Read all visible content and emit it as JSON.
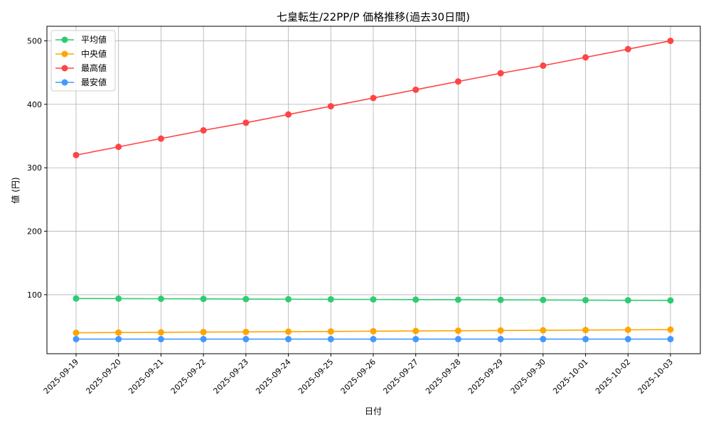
{
  "chart_data": {
    "type": "line",
    "title": "七皇転生/22PP/P 価格推移(過去30日間)",
    "xlabel": "日付",
    "ylabel": "値 (円)",
    "ylim": [
      7,
      523
    ],
    "yticks": [
      100,
      200,
      300,
      400,
      500
    ],
    "grid": true,
    "legend_position": "top-left",
    "categories": [
      "2025-09-19",
      "2025-09-20",
      "2025-09-21",
      "2025-09-22",
      "2025-09-23",
      "2025-09-24",
      "2025-09-25",
      "2025-09-26",
      "2025-09-27",
      "2025-09-28",
      "2025-09-29",
      "2025-09-30",
      "2025-10-01",
      "2025-10-02",
      "2025-10-03"
    ],
    "series": [
      {
        "name": "平均値",
        "color": "#2ecc71",
        "values": [
          94,
          93.8,
          93.6,
          93.4,
          93.1,
          92.9,
          92.7,
          92.5,
          92.3,
          92.1,
          91.9,
          91.7,
          91.4,
          91.2,
          91
        ]
      },
      {
        "name": "中央値",
        "color": "#ffa500",
        "values": [
          40,
          40.4,
          40.7,
          41.1,
          41.4,
          41.8,
          42.1,
          42.5,
          42.9,
          43.2,
          43.6,
          43.9,
          44.3,
          44.6,
          45
        ]
      },
      {
        "name": "最高値",
        "color": "#ff4444",
        "values": [
          320,
          333,
          346,
          359,
          371,
          384,
          397,
          410,
          423,
          436,
          449,
          461,
          474,
          487,
          500
        ]
      },
      {
        "name": "最安値",
        "color": "#4499ff",
        "values": [
          30,
          30,
          30,
          30,
          30,
          30,
          30,
          30,
          30,
          30,
          30,
          30,
          30,
          30,
          30
        ]
      }
    ]
  }
}
